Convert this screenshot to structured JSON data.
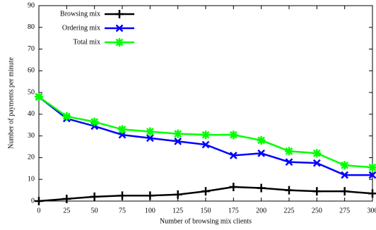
{
  "chart_data": {
    "type": "line",
    "x_label": "Number of browsing mix clients",
    "y_label": "Number of payments per minute",
    "x": [
      0,
      25,
      50,
      75,
      100,
      125,
      150,
      175,
      200,
      225,
      250,
      275,
      300
    ],
    "series": [
      {
        "name": "Browsing mix",
        "color": "#000000",
        "marker": "plus",
        "values": [
          0,
          1,
          2,
          2.5,
          2.5,
          3,
          4.5,
          6.5,
          6,
          5,
          4.5,
          4.5,
          3.5
        ]
      },
      {
        "name": "Ordering mix",
        "color": "#0000ff",
        "marker": "cross",
        "values": [
          48,
          38,
          34.5,
          30.5,
          29,
          27.5,
          26,
          21,
          22,
          18,
          17.5,
          12,
          12
        ]
      },
      {
        "name": "Total mix",
        "color": "#00ff00",
        "marker": "star",
        "values": [
          48,
          39,
          36.5,
          33,
          32,
          31,
          30.5,
          30.5,
          28,
          23,
          22,
          16.5,
          15.5
        ]
      }
    ],
    "xlim": [
      0,
      300
    ],
    "xticks": [
      0,
      25,
      50,
      75,
      100,
      125,
      150,
      175,
      200,
      225,
      250,
      275,
      300
    ],
    "ylim": [
      0,
      90
    ],
    "yticks": [
      0,
      10,
      20,
      30,
      40,
      50,
      60,
      70,
      80,
      90
    ],
    "legend": "top-left"
  }
}
